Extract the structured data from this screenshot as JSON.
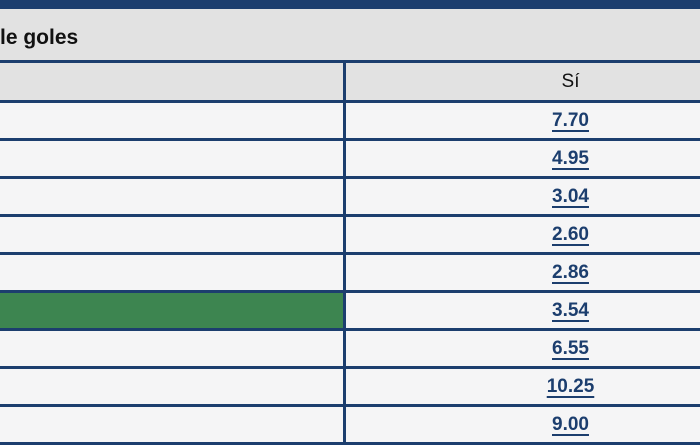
{
  "market": {
    "title": "le goles"
  },
  "table": {
    "columns": [
      {
        "label": "Sí"
      }
    ],
    "rows": [
      {
        "odds": "7.70",
        "highlighted": false
      },
      {
        "odds": "4.95",
        "highlighted": false
      },
      {
        "odds": "3.04",
        "highlighted": false
      },
      {
        "odds": "2.60",
        "highlighted": false
      },
      {
        "odds": "2.86",
        "highlighted": false
      },
      {
        "odds": "3.54",
        "highlighted": true
      },
      {
        "odds": "6.55",
        "highlighted": false
      },
      {
        "odds": "10.25",
        "highlighted": false
      },
      {
        "odds": "9.00",
        "highlighted": false
      }
    ]
  },
  "colors": {
    "navy": "#1c3e6e",
    "header_gray": "#e2e2e2",
    "row_background": "#f5f5f6",
    "highlight_green": "#3d8550",
    "odds_link": "#1c3e6e",
    "title_text": "#111111"
  }
}
